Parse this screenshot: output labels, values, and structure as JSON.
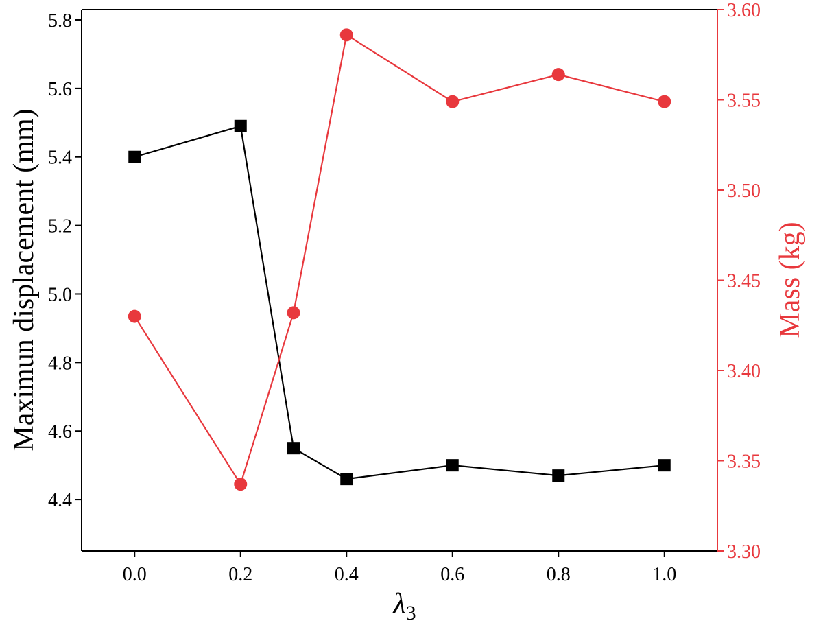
{
  "chart_data": {
    "type": "line",
    "x": [
      0.0,
      0.2,
      0.3,
      0.4,
      0.6,
      0.8,
      1.0
    ],
    "xlim": [
      -0.1,
      1.1
    ],
    "xticks": [
      "0.0",
      "0.2",
      "0.4",
      "0.6",
      "0.8",
      "1.0"
    ],
    "xlabel": {
      "main": "λ",
      "sub": "3"
    },
    "left_axis": {
      "ylabel": "Maximun displacement (mm)",
      "ylim": [
        4.25,
        5.83
      ],
      "ticks": [
        "4.4",
        "4.6",
        "4.8",
        "5.0",
        "5.2",
        "5.4",
        "5.6",
        "5.8"
      ],
      "color": "#000000"
    },
    "right_axis": {
      "ylabel": "Mass (kg)",
      "ylim": [
        3.3,
        3.6
      ],
      "ticks": [
        "3.30",
        "3.35",
        "3.40",
        "3.45",
        "3.50",
        "3.55",
        "3.60"
      ],
      "color": "#e8383d"
    },
    "series": [
      {
        "axis": "left",
        "marker": "square",
        "color": "#000000",
        "values": [
          5.4,
          5.49,
          4.55,
          4.46,
          4.5,
          4.47,
          4.5
        ]
      },
      {
        "axis": "right",
        "marker": "circle",
        "color": "#e8383d",
        "values": [
          3.43,
          3.337,
          3.432,
          3.586,
          3.549,
          3.564,
          3.549
        ]
      }
    ],
    "grid": false,
    "legend": "none"
  }
}
